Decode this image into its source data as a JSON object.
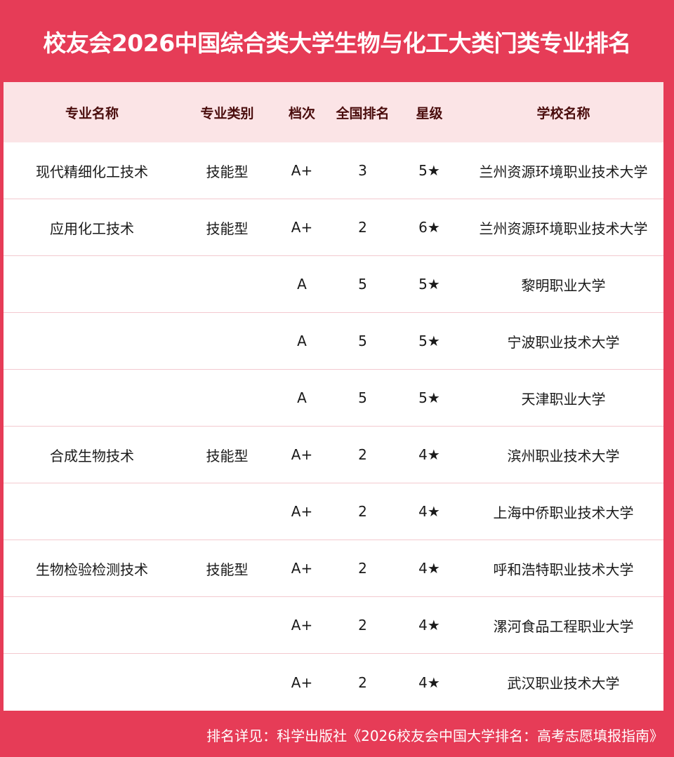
{
  "title": "校友会2026中国综合类大学生物与化工大类门类专业排名",
  "colors": {
    "brand_red": "#e63c57",
    "header_bg": "#fbe4e6"
  },
  "table": {
    "headers": [
      "专业名称",
      "专业类别",
      "档次",
      "全国排名",
      "星级",
      "学校名称"
    ],
    "rows": [
      [
        "现代精细化工技术",
        "技能型",
        "A+",
        "3",
        "5★",
        "兰州资源环境职业技术大学"
      ],
      [
        "应用化工技术",
        "技能型",
        "A+",
        "2",
        "6★",
        "兰州资源环境职业技术大学"
      ],
      [
        "",
        "",
        "A",
        "5",
        "5★",
        "黎明职业大学"
      ],
      [
        "",
        "",
        "A",
        "5",
        "5★",
        "宁波职业技术大学"
      ],
      [
        "",
        "",
        "A",
        "5",
        "5★",
        "天津职业大学"
      ],
      [
        "合成生物技术",
        "技能型",
        "A+",
        "2",
        "4★",
        "滨州职业技术大学"
      ],
      [
        "",
        "",
        "A+",
        "2",
        "4★",
        "上海中侨职业技术大学"
      ],
      [
        "生物检验检测技术",
        "技能型",
        "A+",
        "2",
        "4★",
        "呼和浩特职业技术大学"
      ],
      [
        "",
        "",
        "A+",
        "2",
        "4★",
        "漯河食品工程职业大学"
      ],
      [
        "",
        "",
        "A+",
        "2",
        "4★",
        "武汉职业技术大学"
      ]
    ]
  },
  "footer": "排名详见：科学出版社《2026校友会中国大学排名：高考志愿填报指南》"
}
